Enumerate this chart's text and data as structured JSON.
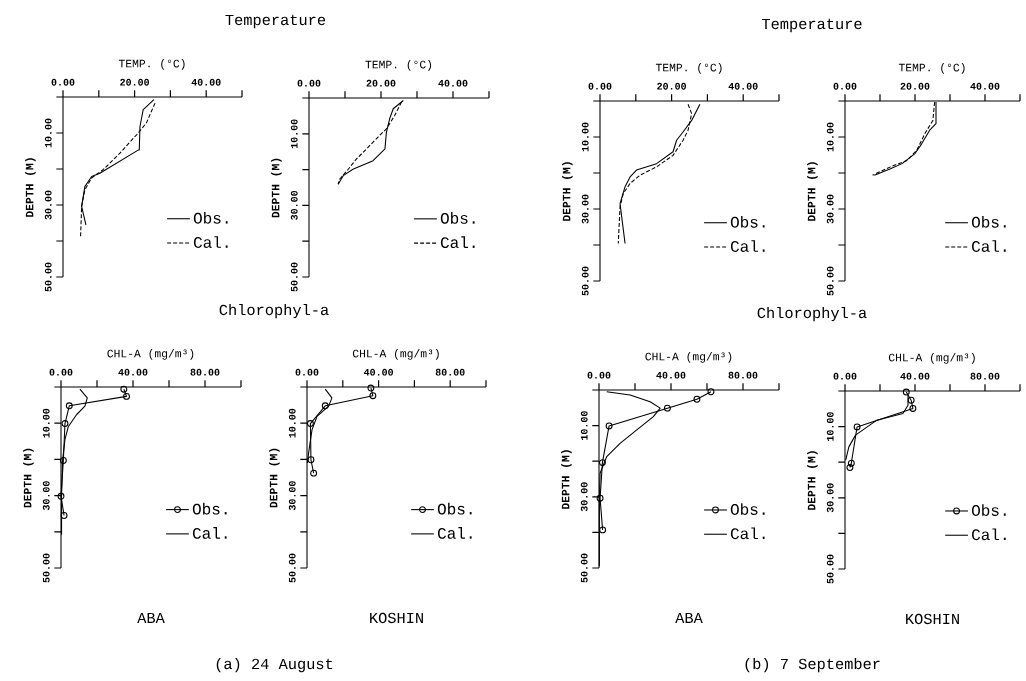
{
  "chart_data": [
    {
      "type": "line",
      "title": "Temperature",
      "xlabel": "TEMP. (°C)",
      "ylabel": "DEPTH (M)",
      "xlim": [
        0,
        50
      ],
      "xticks": [
        {
          "value": 0,
          "label": "0.00"
        },
        {
          "value": 10,
          "label": null
        },
        {
          "value": 20,
          "label": "20.00"
        },
        {
          "value": 30,
          "label": null
        },
        {
          "value": 40,
          "label": "40.00"
        },
        {
          "value": 50,
          "label": null
        }
      ],
      "ylim": [
        50,
        0
      ],
      "yticks": [
        {
          "value": 0,
          "label": null
        },
        {
          "value": 10,
          "label": "10.00"
        },
        {
          "value": 20,
          "label": null
        },
        {
          "value": 30,
          "label": "30.00"
        },
        {
          "value": 40,
          "label": null
        },
        {
          "value": 50,
          "label": "50.00"
        }
      ],
      "legend": "bottom right",
      "series": [
        {
          "name": "Obs.",
          "color": "#000000",
          "line_style": "solid",
          "x": [
            25.4,
            22.4,
            21.5,
            21.3,
            21.1,
            10.3,
            8.0,
            6.1,
            5.2,
            6.4
          ],
          "values": [
            0.7,
            3.5,
            8.2,
            14.7,
            14.7,
            21.2,
            22.1,
            24.9,
            30.4,
            35.5
          ]
        },
        {
          "name": "Cal.",
          "color": "#000000",
          "line_style": "dashed",
          "x": [
            25.7,
            23.3,
            21.0,
            15.9,
            11.2,
            8.0,
            6.1,
            5.2,
            4.9
          ],
          "values": [
            1.7,
            7.2,
            10.0,
            15.6,
            20.2,
            22.5,
            25.8,
            30.4,
            39.2
          ]
        }
      ]
    },
    {
      "type": "line",
      "xlabel": "TEMP. (°C)",
      "ylabel": "DEPTH (M)",
      "xlim": [
        0,
        50
      ],
      "xticks": [
        {
          "value": 0,
          "label": "0.00"
        },
        {
          "value": 10,
          "label": null
        },
        {
          "value": 20,
          "label": "20.00"
        },
        {
          "value": 30,
          "label": null
        },
        {
          "value": 40,
          "label": "40.00"
        },
        {
          "value": 50,
          "label": null
        }
      ],
      "ylim": [
        50,
        0
      ],
      "yticks": [
        {
          "value": 0,
          "label": null
        },
        {
          "value": 10,
          "label": "10.00"
        },
        {
          "value": 20,
          "label": null
        },
        {
          "value": 30,
          "label": "30.00"
        },
        {
          "value": 40,
          "label": null
        },
        {
          "value": 50,
          "label": "50.00"
        }
      ],
      "legend": "bottom right",
      "series": [
        {
          "name": "Obs.",
          "color": "#000000",
          "line_style": "solid",
          "x": [
            26.2,
            23.4,
            22.4,
            21.5,
            21.1,
            17.8,
            12.2,
            9.5,
            8.1
          ],
          "values": [
            0.7,
            3.0,
            5.8,
            9.6,
            14.2,
            17.5,
            19.9,
            21.7,
            24.1
          ]
        },
        {
          "name": "Cal.",
          "color": "#000000",
          "line_style": "dashed",
          "x": [
            25.7,
            23.8,
            21.5,
            18.7,
            16.0,
            13.2,
            10.9,
            8.5,
            8.1
          ],
          "values": [
            1.1,
            4.9,
            8.6,
            11.4,
            14.2,
            17.0,
            19.9,
            22.7,
            24.1
          ]
        }
      ]
    },
    {
      "type": "line",
      "title": "Temperature",
      "xlabel": "TEMP. (°C)",
      "ylabel": "DEPTH (M)",
      "xlim": [
        0,
        50
      ],
      "xticks": [
        {
          "value": 0,
          "label": "0.00"
        },
        {
          "value": 10,
          "label": null
        },
        {
          "value": 20,
          "label": "20.00"
        },
        {
          "value": 30,
          "label": null
        },
        {
          "value": 40,
          "label": "40.00"
        },
        {
          "value": 50,
          "label": null
        }
      ],
      "ylim": [
        50,
        0
      ],
      "yticks": [
        {
          "value": 0,
          "label": null
        },
        {
          "value": 10,
          "label": "10.00"
        },
        {
          "value": 20,
          "label": null
        },
        {
          "value": 30,
          "label": "30.00"
        },
        {
          "value": 40,
          "label": null
        },
        {
          "value": 50,
          "label": "50.00"
        }
      ],
      "legend": "bottom right",
      "series": [
        {
          "name": "Obs.",
          "color": "#000000",
          "line_style": "solid",
          "x": [
            27.9,
            25.6,
            23.2,
            21.4,
            20.4,
            15.8,
            10.2,
            8.4,
            7.0,
            5.6,
            7.0
          ],
          "values": [
            0.9,
            5.4,
            8.6,
            10.9,
            14.1,
            17.4,
            19.2,
            21.1,
            23.8,
            28.5,
            39.6
          ]
        },
        {
          "name": "Cal.",
          "color": "#000000",
          "line_style": "dashed",
          "x": [
            24.6,
            25.6,
            24.6,
            23.2,
            20.4,
            15.8,
            11.2,
            8.4,
            6.5,
            5.6,
            5.1
          ],
          "values": [
            0.9,
            3.5,
            8.1,
            10.9,
            15.1,
            18.3,
            20.6,
            22.9,
            25.7,
            29.4,
            39.6
          ]
        }
      ]
    },
    {
      "type": "line",
      "xlabel": "TEMP. (°C)",
      "ylabel": "DEPTH (M)",
      "xlim": [
        0,
        50
      ],
      "xticks": [
        {
          "value": 0,
          "label": "0.00"
        },
        {
          "value": 10,
          "label": null
        },
        {
          "value": 20,
          "label": "20.00"
        },
        {
          "value": 30,
          "label": null
        },
        {
          "value": 40,
          "label": "40.00"
        },
        {
          "value": 50,
          "label": null
        }
      ],
      "ylim": [
        50,
        0
      ],
      "yticks": [
        {
          "value": 0,
          "label": null
        },
        {
          "value": 10,
          "label": "10.00"
        },
        {
          "value": 20,
          "label": null
        },
        {
          "value": 30,
          "label": "30.00"
        },
        {
          "value": 40,
          "label": null
        },
        {
          "value": 50,
          "label": "50.00"
        }
      ],
      "legend": "bottom right",
      "series": [
        {
          "name": "Obs.",
          "color": "#000000",
          "line_style": "solid",
          "x": [
            26.0,
            26.0,
            24.2,
            21.9,
            20.0,
            16.3,
            13.0,
            8.4
          ],
          "values": [
            0.3,
            6.3,
            8.1,
            11.9,
            14.6,
            17.4,
            18.8,
            20.6
          ]
        },
        {
          "name": "Cal.",
          "color": "#000000",
          "line_style": "dashed",
          "x": [
            25.6,
            25.1,
            22.8,
            20.5,
            17.7,
            13.0,
            7.9
          ],
          "values": [
            0.3,
            5.4,
            9.1,
            13.7,
            16.5,
            18.3,
            20.6
          ]
        }
      ]
    },
    {
      "type": "line",
      "title": "Chlorophyl-a",
      "xlabel": "CHL-A (mg/m³)",
      "ylabel": "DEPTH (M)",
      "xlim": [
        0,
        100
      ],
      "xticks": [
        {
          "value": 0,
          "label": "0.00"
        },
        {
          "value": 20,
          "label": null
        },
        {
          "value": 40,
          "label": "40.00"
        },
        {
          "value": 60,
          "label": null
        },
        {
          "value": 80,
          "label": "80.00"
        },
        {
          "value": 100,
          "label": null
        }
      ],
      "ylim": [
        50,
        0
      ],
      "yticks": [
        {
          "value": 0,
          "label": null
        },
        {
          "value": 10,
          "label": "10.00"
        },
        {
          "value": 20,
          "label": null
        },
        {
          "value": 30,
          "label": "30.00"
        },
        {
          "value": 40,
          "label": null
        },
        {
          "value": 50,
          "label": "50.00"
        }
      ],
      "legend": "bottom right",
      "annotations": [
        "ABA",
        "(a) 24 August"
      ],
      "series": [
        {
          "name": "Obs.",
          "color": "#000000",
          "line_style": "solid",
          "marker": "circle",
          "x": [
            34.9,
            36.4,
            4.6,
            2.2,
            1.3,
            0,
            1.7
          ],
          "values": [
            0.6,
            2.6,
            5.2,
            10.1,
            20.3,
            30.2,
            35.5
          ]
        },
        {
          "name": "Cal.",
          "color": "#000000",
          "line_style": "solid",
          "x": [
            10.5,
            14.6,
            13.3,
            8.7,
            4.1,
            2.2,
            0.9,
            0.3,
            0.3
          ],
          "values": [
            0.6,
            3.0,
            5.3,
            7.6,
            10.9,
            14.5,
            20.1,
            30.2,
            40.8
          ]
        }
      ]
    },
    {
      "type": "line",
      "xlabel": "CHL-A (mg/m³)",
      "ylabel": "DEPTH (M)",
      "xlim": [
        0,
        100
      ],
      "xticks": [
        {
          "value": 0,
          "label": "0.00"
        },
        {
          "value": 20,
          "label": null
        },
        {
          "value": 40,
          "label": "40.00"
        },
        {
          "value": 60,
          "label": null
        },
        {
          "value": 80,
          "label": "80.00"
        },
        {
          "value": 100,
          "label": null
        }
      ],
      "ylim": [
        50,
        0
      ],
      "yticks": [
        {
          "value": 0,
          "label": null
        },
        {
          "value": 10,
          "label": "10.00"
        },
        {
          "value": 20,
          "label": null
        },
        {
          "value": 30,
          "label": "30.00"
        },
        {
          "value": 40,
          "label": null
        },
        {
          "value": 50,
          "label": "50.00"
        }
      ],
      "legend": "bottom right",
      "annotations": [
        "KOSHIN"
      ],
      "series": [
        {
          "name": "Obs.",
          "color": "#000000",
          "line_style": "solid",
          "marker": "circle",
          "x": [
            35.7,
            36.8,
            10.2,
            1.9,
            2.2,
            3.7
          ],
          "values": [
            0.3,
            2.4,
            5.2,
            10.1,
            20.1,
            23.8
          ]
        },
        {
          "name": "Cal.",
          "color": "#000000",
          "line_style": "solid",
          "x": [
            10.2,
            13.9,
            12.1,
            5.6,
            2.8,
            0.9,
            0.2
          ],
          "values": [
            0.6,
            3.0,
            5.3,
            8.1,
            11.8,
            18.2,
            21.0
          ]
        }
      ]
    },
    {
      "type": "line",
      "title": "Chlorophyl-a",
      "xlabel": "CHL-A (mg/m³)",
      "ylabel": "DEPTH (M)",
      "xlim": [
        0,
        100
      ],
      "xticks": [
        {
          "value": 0,
          "label": "0.00"
        },
        {
          "value": 20,
          "label": null
        },
        {
          "value": 40,
          "label": "40.00"
        },
        {
          "value": 60,
          "label": null
        },
        {
          "value": 80,
          "label": "80.00"
        },
        {
          "value": 100,
          "label": null
        }
      ],
      "ylim": [
        50,
        0
      ],
      "yticks": [
        {
          "value": 0,
          "label": null
        },
        {
          "value": 10,
          "label": "10.00"
        },
        {
          "value": 20,
          "label": null
        },
        {
          "value": 30,
          "label": "30.00"
        },
        {
          "value": 40,
          "label": null
        },
        {
          "value": 50,
          "label": "50.00"
        }
      ],
      "legend": "bottom right",
      "annotations": [
        "ABA",
        "(b) 7 September"
      ],
      "series": [
        {
          "name": "Obs.",
          "color": "#000000",
          "line_style": "solid",
          "marker": "circle",
          "x": [
            62.2,
            54.4,
            38.0,
            5.6,
            1.9,
            0.6,
            2.0
          ],
          "values": [
            0.5,
            2.6,
            5.1,
            10.1,
            20.4,
            30.4,
            39.3
          ]
        },
        {
          "name": "Cal.",
          "color": "#000000",
          "line_style": "solid",
          "x": [
            4.3,
            17.3,
            28.4,
            34.0,
            30.2,
            21.0,
            11.7,
            4.3,
            0.6,
            0.2,
            0.2
          ],
          "values": [
            0.5,
            1.4,
            3.3,
            5.1,
            7.5,
            11.2,
            15.0,
            18.7,
            23.4,
            30.8,
            49.5
          ]
        }
      ]
    },
    {
      "type": "line",
      "xlabel": "CHL-A (mg/m³)",
      "ylabel": "DEPTH (M)",
      "xlim": [
        0,
        100
      ],
      "xticks": [
        {
          "value": 0,
          "label": "0.00"
        },
        {
          "value": 20,
          "label": null
        },
        {
          "value": 40,
          "label": "40.00"
        },
        {
          "value": 60,
          "label": null
        },
        {
          "value": 80,
          "label": "80.00"
        },
        {
          "value": 100,
          "label": null
        }
      ],
      "ylim": [
        50,
        0
      ],
      "yticks": [
        {
          "value": 0,
          "label": null
        },
        {
          "value": 10,
          "label": "10.00"
        },
        {
          "value": 20,
          "label": null
        },
        {
          "value": 30,
          "label": "30.00"
        },
        {
          "value": 40,
          "label": null
        },
        {
          "value": 50,
          "label": "50.00"
        }
      ],
      "legend": "bottom right",
      "annotations": [
        "KOSHIN"
      ],
      "series": [
        {
          "name": "Obs.",
          "color": "#000000",
          "line_style": "solid",
          "marker": "circle",
          "x": [
            35.0,
            37.8,
            38.8,
            6.9,
            3.6,
            2.8
          ],
          "values": [
            0.3,
            2.6,
            4.9,
            10.1,
            20.3,
            21.5
          ]
        },
        {
          "name": "Cal.",
          "color": "#000000",
          "line_style": "solid",
          "x": [
            36.0,
            36.0,
            33.1,
            18.2,
            6.0,
            2.2,
            0.4
          ],
          "values": [
            1.2,
            4.0,
            6.3,
            8.2,
            12.4,
            15.7,
            19.4
          ]
        }
      ]
    }
  ]
}
